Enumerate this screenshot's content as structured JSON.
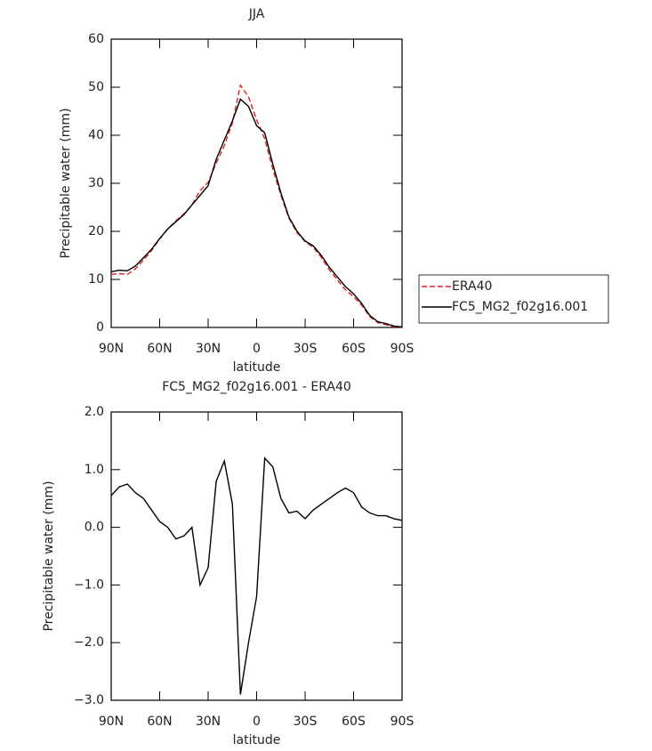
{
  "chart_data": [
    {
      "type": "line",
      "title": "JJA",
      "xlabel": "latitude",
      "ylabel": "Precipitable water (mm)",
      "x": [
        90,
        85,
        80,
        75,
        70,
        65,
        60,
        55,
        50,
        45,
        40,
        35,
        30,
        25,
        20,
        15,
        10,
        5,
        0,
        -5,
        -10,
        -15,
        -20,
        -25,
        -30,
        -35,
        -40,
        -45,
        -50,
        -55,
        -60,
        -65,
        -70,
        -75,
        -80,
        -85,
        -90
      ],
      "series": [
        {
          "name": "ERA40",
          "color": "#e02020",
          "linestyle": "dashed",
          "values": [
            11.05,
            11.2,
            11.05,
            12.2,
            14.0,
            16.0,
            18.4,
            20.5,
            22.2,
            23.65,
            25.5,
            28.5,
            30.2,
            34.2,
            37.85,
            42.6,
            50.4,
            48,
            43.2,
            39.3,
            32.95,
            27.5,
            22.75,
            19.72,
            17.85,
            16.7,
            14.6,
            12.0,
            9.9,
            7.82,
            6.4,
            4.65,
            2.25,
            1.0,
            0.6,
            0.15,
            0
          ]
        },
        {
          "name": "FC5_MG2_f02g16.001",
          "color": "#000000",
          "linestyle": "solid",
          "values": [
            11.6,
            11.9,
            11.8,
            12.8,
            14.5,
            16.3,
            18.5,
            20.5,
            22,
            23.5,
            25.5,
            27.5,
            29.5,
            35,
            39,
            43,
            47.5,
            46,
            42,
            40.5,
            34,
            28,
            23,
            20,
            18,
            17,
            15,
            12.5,
            10.5,
            8.5,
            7,
            5,
            2.5,
            1.2,
            0.8,
            0.3,
            0.12
          ]
        }
      ],
      "xlim": [
        90,
        -90
      ],
      "xticks": [
        {
          "value": 90,
          "label": "90N"
        },
        {
          "value": 60,
          "label": "60N"
        },
        {
          "value": 30,
          "label": "30N"
        },
        0,
        {
          "value": -30,
          "label": "30S"
        },
        {
          "value": -60,
          "label": "60S"
        },
        {
          "value": -90,
          "label": "90S"
        }
      ],
      "ylim": [
        0,
        60
      ],
      "yticks": [
        0,
        10,
        20,
        30,
        40,
        50,
        60
      ],
      "legend": "right"
    },
    {
      "type": "line",
      "title": "FC5_MG2_f02g16.001 - ERA40",
      "xlabel": "latitude",
      "ylabel": "Precipitable water (mm)",
      "x": [
        90,
        85,
        80,
        75,
        70,
        65,
        60,
        55,
        50,
        45,
        40,
        35,
        30,
        25,
        20,
        15,
        10,
        5,
        0,
        -5,
        -10,
        -15,
        -20,
        -25,
        -30,
        -35,
        -40,
        -45,
        -50,
        -55,
        -60,
        -65,
        -70,
        -75,
        -80,
        -85,
        -90
      ],
      "values": [
        0.55,
        0.7,
        0.75,
        0.6,
        0.5,
        0.3,
        0.1,
        0.0,
        -0.2,
        -0.15,
        0.0,
        -1.0,
        -0.7,
        0.8,
        1.15,
        0.4,
        -2.9,
        -2.0,
        -1.2,
        1.2,
        1.05,
        0.5,
        0.25,
        0.28,
        0.15,
        0.3,
        0.4,
        0.5,
        0.6,
        0.68,
        0.6,
        0.35,
        0.25,
        0.2,
        0.2,
        0.15,
        0.12
      ],
      "color": "#000000",
      "xlim": [
        90,
        -90
      ],
      "xticks": [
        {
          "value": 90,
          "label": "90N"
        },
        {
          "value": 60,
          "label": "60N"
        },
        {
          "value": 30,
          "label": "30N"
        },
        0,
        {
          "value": -30,
          "label": "30S"
        },
        {
          "value": -60,
          "label": "60S"
        },
        {
          "value": -90,
          "label": "90S"
        }
      ],
      "ylim": [
        -3,
        2
      ],
      "yticks": [
        {
          "value": -3,
          "label": "−3.0"
        },
        {
          "value": -2,
          "label": "−2.0"
        },
        {
          "value": -1,
          "label": "−1.0"
        },
        {
          "value": 0,
          "label": "0.0"
        },
        {
          "value": 1,
          "label": "1.0"
        },
        {
          "value": 2,
          "label": "2.0"
        }
      ]
    }
  ]
}
